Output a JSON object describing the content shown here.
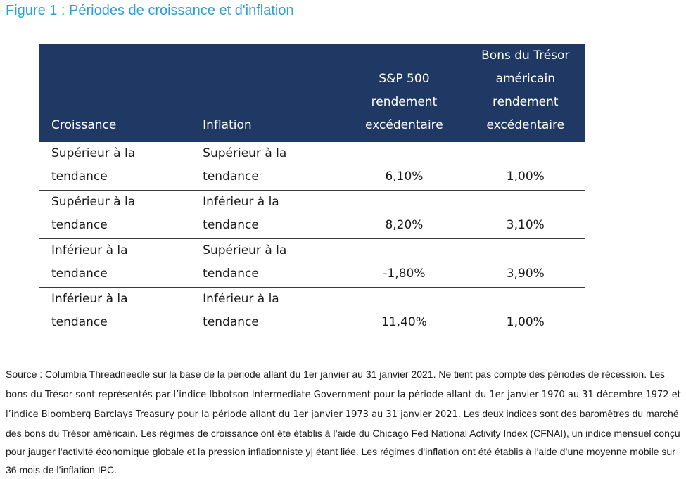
{
  "figure": {
    "title": "Figure 1 : Périodes de croissance et d'inflation"
  },
  "table": {
    "headers": {
      "growth": "Croissance",
      "inflation": "Inflation",
      "sp500_lines": [
        "S&P 500",
        "rendement",
        "excédentaire"
      ],
      "treasury_lines": [
        "Bons du Trésor",
        "américain",
        "rendement",
        "excédentaire"
      ]
    },
    "rows": [
      {
        "growth": "Supérieur à la tendance",
        "inflation": "Supérieur à la tendance",
        "sp500": "6,10%",
        "treasury": "1,00%"
      },
      {
        "growth": "Supérieur à la tendance",
        "inflation": "Inférieur à la tendance",
        "sp500": "8,20%",
        "treasury": "3,10%"
      },
      {
        "growth": "Inférieur à la tendance",
        "inflation": "Supérieur à la tendance",
        "sp500": "-1,80%",
        "treasury": "3,90%"
      },
      {
        "growth": "Inférieur à la tendance",
        "inflation": "Inférieur à la tendance",
        "sp500": "11,40%",
        "treasury": "1,00%"
      }
    ]
  },
  "source_note": {
    "part1": "Source : Columbia Threadneedle sur la base de la période allant du 1er janvier au 31 janvier 2021. Ne tient pas compte des périodes de récession.",
    "part2": " Les bons du Trésor sont représentés par l’indice Ibbotson Intermediate Government pour la période allant du 1er janvier 1970 au 31 décembre 1972 et l’indice Bloomberg Barclays Treasury pour la période allant du 1er janvier 1973 au 31 janvier 2021.",
    "part3": " Les deux indices sont des baromètres du marché des bons du Trésor américain. Les régimes de croissance ont été établis à l’aide du Chicago Fed National Activity Index (CFNAI), un indice mensuel conçu pour jauger l’activité économique globale et la pression inflationniste y| étant liée. Les régimes d'inflation ont été établis à l’aide d’une moyenne mobile sur 36 mois de l’inflation IPC."
  }
}
